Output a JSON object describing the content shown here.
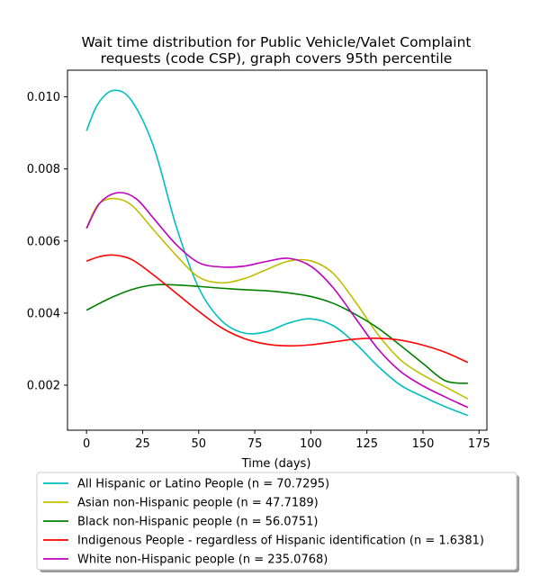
{
  "chart_data": {
    "type": "line",
    "title_lines": [
      "Wait time distribution  for Public Vehicle/Valet Complaint",
      "requests (code CSP), graph covers 95th percentile"
    ],
    "xlabel": "Time (days)",
    "ylabel": "",
    "xlim": [
      -8.5,
      178.5
    ],
    "ylim": [
      0.00075,
      0.01074
    ],
    "xticks": [
      0,
      25,
      50,
      75,
      100,
      125,
      150,
      175
    ],
    "yticks": [
      0.002,
      0.004,
      0.006,
      0.008,
      0.01
    ],
    "ytick_labels": [
      "0.002",
      "0.004",
      "0.006",
      "0.008",
      "0.010"
    ],
    "legend_position": "below",
    "series": [
      {
        "name": "All Hispanic or Latino People (n = 70.7295)",
        "color": "#00bfbf",
        "points": [
          [
            0,
            0.00906
          ],
          [
            5,
            0.0098
          ],
          [
            12,
            0.01018
          ],
          [
            20,
            0.0099
          ],
          [
            30,
            0.0086
          ],
          [
            40,
            0.0064
          ],
          [
            50,
            0.0047
          ],
          [
            60,
            0.0038
          ],
          [
            70,
            0.00345
          ],
          [
            80,
            0.00348
          ],
          [
            90,
            0.00372
          ],
          [
            100,
            0.00384
          ],
          [
            110,
            0.00365
          ],
          [
            120,
            0.00315
          ],
          [
            130,
            0.00252
          ],
          [
            140,
            0.002
          ],
          [
            150,
            0.00168
          ],
          [
            160,
            0.0014
          ],
          [
            170,
            0.00116
          ]
        ]
      },
      {
        "name": "Asian non-Hispanic people (n = 47.7189)",
        "color": "#bfbf00",
        "points": [
          [
            0,
            0.00636
          ],
          [
            5,
            0.007
          ],
          [
            12,
            0.00718
          ],
          [
            20,
            0.007
          ],
          [
            30,
            0.0063
          ],
          [
            40,
            0.0056
          ],
          [
            50,
            0.005
          ],
          [
            60,
            0.00484
          ],
          [
            70,
            0.00495
          ],
          [
            80,
            0.0052
          ],
          [
            90,
            0.00544
          ],
          [
            100,
            0.00545
          ],
          [
            110,
            0.0051
          ],
          [
            120,
            0.0043
          ],
          [
            130,
            0.0034
          ],
          [
            140,
            0.0027
          ],
          [
            150,
            0.00228
          ],
          [
            160,
            0.00195
          ],
          [
            170,
            0.00162
          ]
        ]
      },
      {
        "name": "Black non-Hispanic people (n = 56.0751)",
        "color": "#008000",
        "points": [
          [
            0,
            0.00408
          ],
          [
            10,
            0.0044
          ],
          [
            20,
            0.00465
          ],
          [
            30,
            0.00478
          ],
          [
            40,
            0.00478
          ],
          [
            50,
            0.00474
          ],
          [
            60,
            0.00469
          ],
          [
            70,
            0.00465
          ],
          [
            80,
            0.00462
          ],
          [
            90,
            0.00456
          ],
          [
            100,
            0.00446
          ],
          [
            110,
            0.00427
          ],
          [
            120,
            0.00396
          ],
          [
            130,
            0.00358
          ],
          [
            140,
            0.0031
          ],
          [
            150,
            0.0026
          ],
          [
            160,
            0.00212
          ],
          [
            170,
            0.00205
          ]
        ]
      },
      {
        "name": "Indigenous People - regardless of Hispanic identification (n = 1.6381)",
        "color": "#ff0000",
        "points": [
          [
            0,
            0.00544
          ],
          [
            6,
            0.00557
          ],
          [
            12,
            0.00561
          ],
          [
            20,
            0.00549
          ],
          [
            30,
            0.00505
          ],
          [
            40,
            0.00455
          ],
          [
            50,
            0.00405
          ],
          [
            60,
            0.0036
          ],
          [
            70,
            0.0033
          ],
          [
            80,
            0.00314
          ],
          [
            90,
            0.00309
          ],
          [
            100,
            0.00312
          ],
          [
            110,
            0.0032
          ],
          [
            120,
            0.00328
          ],
          [
            130,
            0.0033
          ],
          [
            140,
            0.00325
          ],
          [
            150,
            0.00311
          ],
          [
            160,
            0.00291
          ],
          [
            170,
            0.00263
          ]
        ]
      },
      {
        "name": "White non-Hispanic people (n = 235.0768)",
        "color": "#bf00bf",
        "points": [
          [
            0,
            0.00635
          ],
          [
            6,
            0.00706
          ],
          [
            14,
            0.00734
          ],
          [
            22,
            0.00718
          ],
          [
            30,
            0.00662
          ],
          [
            40,
            0.0059
          ],
          [
            50,
            0.0054
          ],
          [
            60,
            0.00528
          ],
          [
            70,
            0.0053
          ],
          [
            80,
            0.00543
          ],
          [
            90,
            0.00552
          ],
          [
            100,
            0.0053
          ],
          [
            110,
            0.0047
          ],
          [
            120,
            0.00385
          ],
          [
            130,
            0.003
          ],
          [
            140,
            0.00238
          ],
          [
            150,
            0.00198
          ],
          [
            160,
            0.00167
          ],
          [
            170,
            0.00138
          ]
        ]
      }
    ]
  }
}
